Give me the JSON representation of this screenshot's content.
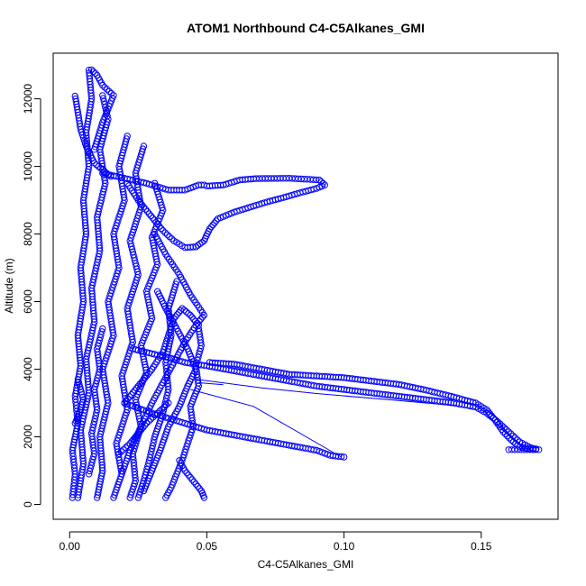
{
  "chart_data": {
    "type": "scatter",
    "title": "ATOM1 Northbound C4-C5Alkanes_GMI",
    "xlabel": "C4-C5Alkanes_GMI",
    "ylabel": "Altitude (m)",
    "xlim": [
      -0.006,
      0.178
    ],
    "ylim": [
      -440,
      13350
    ],
    "xticks": [
      0.0,
      0.05,
      0.1,
      0.15
    ],
    "xtick_labels": [
      "0.00",
      "0.05",
      "0.10",
      "0.15"
    ],
    "yticks": [
      0,
      2000,
      4000,
      6000,
      8000,
      10000,
      12000
    ],
    "ytick_labels": [
      "0",
      "2000",
      "4000",
      "6000",
      "8000",
      "10000",
      "12000"
    ],
    "grid": false,
    "marker": "open-circle",
    "series": [
      {
        "color": "#0000ff",
        "profiles": [
          [
            [
              0.001,
              200
            ],
            [
              0.002,
              900
            ],
            [
              0.001,
              1600
            ],
            [
              0.003,
              2400
            ],
            [
              0.002,
              3200
            ],
            [
              0.004,
              4100
            ],
            [
              0.003,
              5000
            ],
            [
              0.005,
              6000
            ],
            [
              0.004,
              7000
            ],
            [
              0.006,
              8000
            ],
            [
              0.005,
              9000
            ],
            [
              0.007,
              10000
            ],
            [
              0.006,
              11000
            ],
            [
              0.008,
              12000
            ],
            [
              0.007,
              12850
            ]
          ],
          [
            [
              0.003,
              200
            ],
            [
              0.005,
              1200
            ],
            [
              0.004,
              2200
            ],
            [
              0.007,
              3300
            ],
            [
              0.006,
              4300
            ],
            [
              0.009,
              5400
            ],
            [
              0.008,
              6400
            ],
            [
              0.011,
              7500
            ],
            [
              0.01,
              8500
            ],
            [
              0.013,
              9500
            ],
            [
              0.011,
              10500
            ],
            [
              0.014,
              11400
            ],
            [
              0.012,
              12100
            ]
          ],
          [
            [
              0.01,
              200
            ],
            [
              0.012,
              1000
            ],
            [
              0.011,
              2000
            ],
            [
              0.014,
              3000
            ],
            [
              0.012,
              4000
            ],
            [
              0.016,
              5000
            ],
            [
              0.014,
              6000
            ],
            [
              0.018,
              7000
            ],
            [
              0.016,
              8000
            ],
            [
              0.02,
              9000
            ],
            [
              0.018,
              10000
            ],
            [
              0.021,
              10900
            ]
          ],
          [
            [
              0.016,
              200
            ],
            [
              0.019,
              900
            ],
            [
              0.017,
              1800
            ],
            [
              0.021,
              2800
            ],
            [
              0.019,
              3800
            ],
            [
              0.023,
              4800
            ],
            [
              0.021,
              5800
            ],
            [
              0.025,
              6800
            ],
            [
              0.022,
              7800
            ],
            [
              0.026,
              8800
            ],
            [
              0.024,
              9800
            ],
            [
              0.027,
              10600
            ]
          ],
          [
            [
              0.022,
              200
            ],
            [
              0.024,
              700
            ],
            [
              0.023,
              1500
            ],
            [
              0.026,
              2300
            ],
            [
              0.024,
              3100
            ],
            [
              0.028,
              3900
            ],
            [
              0.026,
              4700
            ],
            [
              0.03,
              5500
            ],
            [
              0.028,
              6300
            ],
            [
              0.032,
              7100
            ],
            [
              0.03,
              7900
            ],
            [
              0.034,
              8700
            ],
            [
              0.031,
              9500
            ]
          ],
          [
            [
              0.025,
              200
            ],
            [
              0.027,
              700
            ],
            [
              0.029,
              1300
            ],
            [
              0.031,
              2000
            ],
            [
              0.034,
              2700
            ],
            [
              0.036,
              3400
            ],
            [
              0.035,
              4200
            ],
            [
              0.037,
              5000
            ],
            [
              0.036,
              5800
            ],
            [
              0.039,
              6600
            ]
          ],
          [
            [
              0.035,
              200
            ],
            [
              0.037,
              500
            ],
            [
              0.039,
              900
            ],
            [
              0.041,
              1300
            ],
            [
              0.043,
              1800
            ],
            [
              0.045,
              2300
            ],
            [
              0.044,
              2900
            ],
            [
              0.047,
              3500
            ],
            [
              0.046,
              4100
            ],
            [
              0.048,
              4700
            ],
            [
              0.047,
              5200
            ]
          ],
          [
            [
              0.049,
              200
            ],
            [
              0.048,
              400
            ],
            [
              0.046,
              600
            ],
            [
              0.044,
              800
            ],
            [
              0.042,
              1000
            ],
            [
              0.04,
              1300
            ]
          ],
          [
            [
              0.019,
              900
            ],
            [
              0.022,
              1600
            ],
            [
              0.026,
              2300
            ],
            [
              0.03,
              3000
            ],
            [
              0.034,
              3600
            ],
            [
              0.038,
              4200
            ],
            [
              0.042,
              4800
            ],
            [
              0.046,
              5300
            ],
            [
              0.049,
              5600
            ],
            [
              0.044,
              6200
            ],
            [
              0.04,
              6800
            ],
            [
              0.035,
              7400
            ],
            [
              0.031,
              8000
            ]
          ],
          [
            [
              0.027,
              400
            ],
            [
              0.03,
              1000
            ],
            [
              0.033,
              1600
            ],
            [
              0.036,
              2300
            ],
            [
              0.04,
              2900
            ],
            [
              0.043,
              3500
            ],
            [
              0.046,
              4000
            ],
            [
              0.043,
              4600
            ],
            [
              0.039,
              5200
            ],
            [
              0.035,
              5800
            ],
            [
              0.032,
              6300
            ]
          ],
          [
            [
              0.02,
              3000
            ],
            [
              0.025,
              3500
            ],
            [
              0.03,
              4000
            ],
            [
              0.034,
              4500
            ],
            [
              0.036,
              5000
            ],
            [
              0.038,
              5500
            ],
            [
              0.041,
              5800
            ],
            [
              0.044,
              5600
            ],
            [
              0.047,
              5300
            ]
          ],
          [
            [
              0.009,
              10500
            ],
            [
              0.012,
              11300
            ],
            [
              0.014,
              11700
            ],
            [
              0.016,
              12100
            ],
            [
              0.012,
              12400
            ],
            [
              0.01,
              12700
            ],
            [
              0.008,
              12860
            ]
          ],
          [
            [
              0.002,
              12080
            ],
            [
              0.003,
              11600
            ],
            [
              0.004,
              11100
            ],
            [
              0.006,
              10600
            ],
            [
              0.009,
              10100
            ],
            [
              0.012,
              9900
            ],
            [
              0.015,
              9700
            ]
          ],
          [
            [
              0.012,
              9800
            ],
            [
              0.02,
              9650
            ],
            [
              0.028,
              9500
            ],
            [
              0.036,
              9300
            ],
            [
              0.042,
              9300
            ],
            [
              0.047,
              9450
            ],
            [
              0.049,
              9450
            ]
          ],
          [
            [
              0.021,
              9500
            ],
            [
              0.025,
              9000
            ],
            [
              0.029,
              8600
            ],
            [
              0.034,
              8100
            ],
            [
              0.038,
              7800
            ],
            [
              0.042,
              7600
            ],
            [
              0.046,
              7620
            ]
          ],
          [
            [
              0.046,
              7620
            ],
            [
              0.049,
              7800
            ],
            [
              0.051,
              8150
            ],
            [
              0.054,
              8450
            ],
            [
              0.06,
              8650
            ],
            [
              0.066,
              8800
            ],
            [
              0.072,
              8950
            ],
            [
              0.078,
              9080
            ],
            [
              0.084,
              9220
            ],
            [
              0.09,
              9350
            ],
            [
              0.093,
              9450
            ],
            [
              0.091,
              9600
            ],
            [
              0.08,
              9650
            ],
            [
              0.068,
              9640
            ],
            [
              0.062,
              9600
            ],
            [
              0.056,
              9450
            ],
            [
              0.05,
              9420
            ]
          ],
          [
            [
              0.023,
              4600
            ],
            [
              0.028,
              4500
            ],
            [
              0.033,
              4400
            ],
            [
              0.038,
              4300
            ],
            [
              0.042,
              4200
            ],
            [
              0.05,
              4100
            ],
            [
              0.06,
              3950
            ],
            [
              0.07,
              3800
            ],
            [
              0.08,
              3650
            ],
            [
              0.09,
              3500
            ],
            [
              0.1,
              3400
            ],
            [
              0.11,
              3300
            ],
            [
              0.12,
              3200
            ],
            [
              0.13,
              3100
            ],
            [
              0.14,
              3000
            ],
            [
              0.148,
              2880
            ],
            [
              0.152,
              2700
            ],
            [
              0.156,
              2450
            ],
            [
              0.16,
              2150
            ],
            [
              0.164,
              1850
            ],
            [
              0.168,
              1680
            ],
            [
              0.171,
              1620
            ],
            [
              0.16,
              1620
            ]
          ],
          [
            [
              0.051,
              4200
            ],
            [
              0.06,
              4150
            ],
            [
              0.07,
              4000
            ],
            [
              0.08,
              3850
            ],
            [
              0.09,
              3800
            ],
            [
              0.1,
              3750
            ],
            [
              0.11,
              3650
            ],
            [
              0.12,
              3550
            ],
            [
              0.13,
              3380
            ],
            [
              0.14,
              3180
            ],
            [
              0.148,
              3000
            ],
            [
              0.152,
              2800
            ],
            [
              0.155,
              2500
            ],
            [
              0.158,
              2150
            ],
            [
              0.161,
              1900
            ],
            [
              0.164,
              1700
            ],
            [
              0.169,
              1620
            ]
          ],
          [
            [
              0.02,
              3000
            ],
            [
              0.03,
              2700
            ],
            [
              0.04,
              2450
            ],
            [
              0.05,
              2200
            ],
            [
              0.06,
              2050
            ],
            [
              0.07,
              1900
            ],
            [
              0.08,
              1750
            ],
            [
              0.09,
              1600
            ],
            [
              0.095,
              1450
            ],
            [
              0.1,
              1400
            ]
          ],
          [
            [
              0.018,
              1500
            ],
            [
              0.022,
              1800
            ],
            [
              0.025,
              2100
            ],
            [
              0.028,
              2400
            ],
            [
              0.032,
              2700
            ],
            [
              0.036,
              3000
            ]
          ],
          [
            [
              0.002,
              2400
            ],
            [
              0.003,
              2600
            ],
            [
              0.004,
              2800
            ],
            [
              0.005,
              3100
            ],
            [
              0.004,
              3400
            ],
            [
              0.003,
              3700
            ]
          ],
          [
            [
              0.007,
              900
            ],
            [
              0.009,
              1500
            ],
            [
              0.008,
              2100
            ],
            [
              0.01,
              2800
            ],
            [
              0.009,
              3400
            ],
            [
              0.011,
              4000
            ],
            [
              0.01,
              4600
            ],
            [
              0.012,
              5200
            ]
          ]
        ],
        "lines": [
          [
            [
              0.044,
              3400
            ],
            [
              0.067,
              2900
            ],
            [
              0.099,
              1400
            ]
          ],
          [
            [
              0.046,
              3700
            ],
            [
              0.07,
              3450
            ],
            [
              0.09,
              3280
            ],
            [
              0.116,
              3100
            ],
            [
              0.14,
              2930
            ]
          ],
          [
            [
              0.047,
              3600
            ],
            [
              0.056,
              3540
            ]
          ]
        ]
      }
    ]
  }
}
